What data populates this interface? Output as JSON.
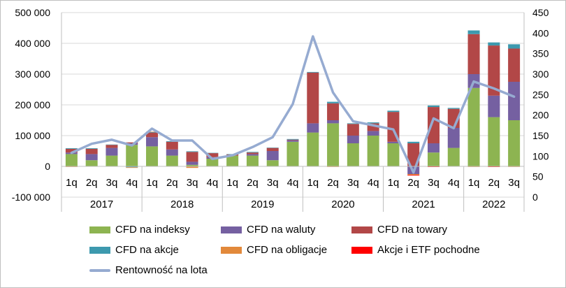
{
  "chart_data": {
    "type": "bar",
    "stacked": true,
    "title": "",
    "quarters": [
      "1q",
      "2q",
      "3q",
      "4q",
      "1q",
      "2q",
      "3q",
      "4q",
      "1q",
      "2q",
      "3q",
      "4q",
      "1q",
      "2q",
      "3q",
      "4q",
      "1q",
      "2q",
      "3q",
      "4q",
      "1q",
      "2q",
      "3q"
    ],
    "years": [
      {
        "label": "2017",
        "count": 4
      },
      {
        "label": "2018",
        "count": 4
      },
      {
        "label": "2019",
        "count": 4
      },
      {
        "label": "2020",
        "count": 4
      },
      {
        "label": "2021",
        "count": 4
      },
      {
        "label": "2022",
        "count": 3
      }
    ],
    "y_left": {
      "min": -100000,
      "max": 500000,
      "step": 100000,
      "ticks": [
        "-100 000",
        "0",
        "100 000",
        "200 000",
        "300 000",
        "400 000",
        "500 000"
      ]
    },
    "y_right": {
      "min": 0,
      "max": 450,
      "step": 50,
      "ticks": [
        "0",
        "50",
        "100",
        "150",
        "200",
        "250",
        "300",
        "350",
        "400",
        "450"
      ]
    },
    "grid": true,
    "legend_position": "bottom",
    "series": [
      {
        "name": "CFD na indeksy",
        "color": "#8db451",
        "values": [
          40000,
          20000,
          35000,
          70000,
          65000,
          35000,
          5000,
          25000,
          35000,
          35000,
          20000,
          80000,
          110000,
          140000,
          75000,
          100000,
          75000,
          0,
          45000,
          60000,
          255000,
          160000,
          150000
        ]
      },
      {
        "name": "CFD na waluty",
        "color": "#7560a1",
        "values": [
          5000,
          20000,
          25000,
          5000,
          30000,
          20000,
          10000,
          5000,
          0,
          5000,
          30000,
          5000,
          30000,
          10000,
          25000,
          15000,
          5000,
          -25000,
          30000,
          65000,
          45000,
          70000,
          125000
        ]
      },
      {
        "name": "CFD na towary",
        "color": "#b24747",
        "values": [
          12000,
          17000,
          10000,
          3000,
          15000,
          25000,
          32000,
          13000,
          4000,
          5000,
          10000,
          2000,
          165000,
          55000,
          38000,
          25000,
          97000,
          75000,
          118000,
          62000,
          130000,
          163000,
          108000
        ]
      },
      {
        "name": "CFD na akcje",
        "color": "#3d99ae",
        "values": [
          2000,
          2000,
          1000,
          -3000,
          2000,
          2000,
          2000,
          1000,
          1000,
          2000,
          1000,
          2000,
          2000,
          5000,
          2000,
          3000,
          4000,
          5000,
          5000,
          3000,
          12000,
          10000,
          14000
        ]
      },
      {
        "name": "CFD na obligacje",
        "color": "#e2893b",
        "values": [
          -2000,
          -1000,
          -1000,
          -2000,
          1000,
          -1000,
          -5000,
          -1000,
          0,
          0,
          0,
          -1000,
          -1000,
          -2000,
          0,
          0,
          0,
          -3000,
          -1000,
          -1000,
          -2000,
          -1000,
          -2000
        ]
      },
      {
        "name": "Akcje i ETF pochodne",
        "color": "#ff0000",
        "values": [
          0,
          0,
          0,
          0,
          0,
          0,
          0,
          0,
          0,
          0,
          0,
          0,
          0,
          0,
          0,
          -1000,
          0,
          -2000,
          -1000,
          0,
          0,
          -1000,
          0
        ]
      }
    ],
    "line_series": {
      "name": "Rentowność na lota",
      "color": "#96abd1",
      "axis": "right",
      "values": [
        108,
        130,
        140,
        126,
        167,
        138,
        138,
        93,
        102,
        122,
        146,
        227,
        392,
        255,
        185,
        175,
        165,
        60,
        192,
        168,
        282,
        265,
        245
      ]
    }
  }
}
